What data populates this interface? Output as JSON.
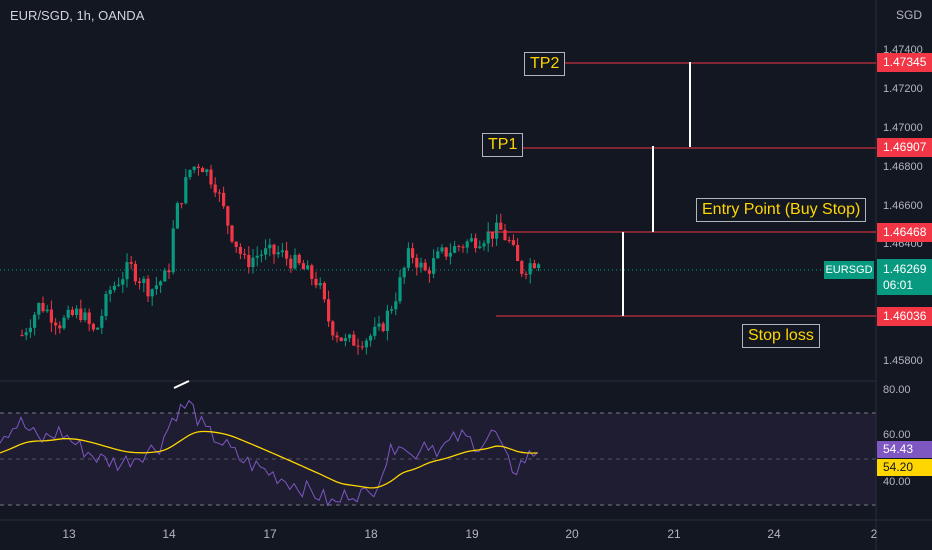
{
  "header": {
    "symbol_title": "EUR/SGD, 1h, OANDA",
    "currency": "SGD"
  },
  "annotations": {
    "tp2": "TP2",
    "tp1": "TP1",
    "entry": "Entry Point (Buy Stop)",
    "stop": "Stop loss"
  },
  "levels": {
    "tp2": "1.47345",
    "tp1": "1.46907",
    "entry": "1.46468",
    "stop": "1.46036"
  },
  "price_axis": [
    "1.47400",
    "1.47200",
    "1.47000",
    "1.46800",
    "1.46600",
    "1.46400",
    "1.45800"
  ],
  "current": {
    "symbol": "EURSGD",
    "price": "1.46269",
    "countdown": "06:01"
  },
  "rsi": {
    "axis": [
      "80.00",
      "60.00",
      "40.00"
    ],
    "value": "54.43",
    "ma_value": "54.20",
    "rsi_color": "#7e57c2",
    "ma_color": "#ffd600"
  },
  "time_axis": [
    "13",
    "14",
    "17",
    "18",
    "19",
    "20",
    "21",
    "24",
    "2"
  ],
  "colors": {
    "up": "#089981",
    "down": "#f23645",
    "background": "#131722",
    "level_line": "#f23645"
  },
  "chart_data": {
    "type": "candlestick",
    "x_range": [
      "13",
      "2"
    ],
    "y_range": [
      1.4571,
      1.4745
    ],
    "levels": [
      1.47345,
      1.46907,
      1.46468,
      1.46036
    ],
    "last_price": 1.46269,
    "rsi_last": 54.43,
    "rsi_ma_last": 54.2
  }
}
